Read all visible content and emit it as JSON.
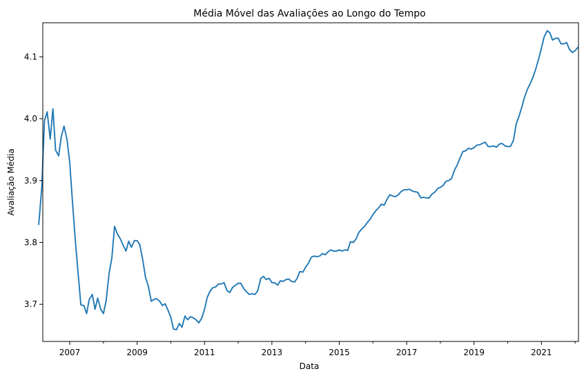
{
  "chart_data": {
    "type": "line",
    "title": "Média Móvel das Avaliações ao Longo do Tempo",
    "xlabel": "Data",
    "ylabel": "Avaliação Média",
    "xlim": [
      2006.2,
      2022.1
    ],
    "ylim": [
      3.64,
      4.155
    ],
    "x_ticks": [
      2007,
      2009,
      2011,
      2013,
      2015,
      2017,
      2019,
      2021
    ],
    "x_tick_labels": [
      "2007",
      "2009",
      "2011",
      "2013",
      "2015",
      "2017",
      "2019",
      "2021"
    ],
    "x_minor_ticks": [
      2008,
      2010,
      2012,
      2014,
      2016,
      2018,
      2020,
      2022
    ],
    "y_ticks": [
      3.7,
      3.8,
      3.9,
      4.0,
      4.1
    ],
    "y_tick_labels": [
      "3.7",
      "3.8",
      "3.9",
      "4.0",
      "4.1"
    ],
    "grid": false,
    "line_color": "#1f77b4",
    "series": [
      {
        "x": [
          2006.08,
          2006.17,
          2006.25,
          2006.33,
          2006.42,
          2006.5,
          2006.58,
          2006.67,
          2006.75,
          2006.83,
          2006.92,
          2007.0,
          2007.08,
          2007.17,
          2007.25,
          2007.33,
          2007.42,
          2007.5,
          2007.58,
          2007.67,
          2007.75,
          2007.83,
          2007.92,
          2008.0,
          2008.08,
          2008.17,
          2008.25,
          2008.33,
          2008.42,
          2008.5,
          2008.58,
          2008.67,
          2008.75,
          2008.83,
          2008.92,
          2009.0,
          2009.08,
          2009.17,
          2009.25,
          2009.33,
          2009.42,
          2009.5,
          2009.58,
          2009.67,
          2009.75,
          2009.83,
          2009.92,
          2010.0,
          2010.08,
          2010.17,
          2010.25,
          2010.33,
          2010.42,
          2010.5,
          2010.58,
          2010.67,
          2010.75,
          2010.83,
          2010.92,
          2011.0,
          2011.08,
          2011.17,
          2011.25,
          2011.33,
          2011.42,
          2011.5,
          2011.58,
          2011.67,
          2011.75,
          2011.83,
          2011.92,
          2012.0,
          2012.08,
          2012.17,
          2012.25,
          2012.33,
          2012.42,
          2012.5,
          2012.58,
          2012.67,
          2012.75,
          2012.83,
          2012.92,
          2013.0,
          2013.08,
          2013.17,
          2013.25,
          2013.33,
          2013.42,
          2013.5,
          2013.58,
          2013.67,
          2013.75,
          2013.83,
          2013.92,
          2014.0,
          2014.08,
          2014.17,
          2014.25,
          2014.33,
          2014.42,
          2014.5,
          2014.58,
          2014.67,
          2014.75,
          2014.83,
          2014.92,
          2015.0,
          2015.08,
          2015.17,
          2015.25,
          2015.33,
          2015.42,
          2015.5,
          2015.58,
          2015.67,
          2015.75,
          2015.83,
          2015.92,
          2016.0,
          2016.08,
          2016.17,
          2016.25,
          2016.33,
          2016.42,
          2016.5,
          2016.58,
          2016.67,
          2016.75,
          2016.83,
          2016.92,
          2017.0,
          2017.08,
          2017.17,
          2017.25,
          2017.33,
          2017.42,
          2017.5,
          2017.58,
          2017.67,
          2017.75,
          2017.83,
          2017.92,
          2018.0,
          2018.08,
          2018.17,
          2018.25,
          2018.33,
          2018.42,
          2018.5,
          2018.58,
          2018.67,
          2018.75,
          2018.83,
          2018.92,
          2019.0,
          2019.08,
          2019.17,
          2019.25,
          2019.33,
          2019.42,
          2019.5,
          2019.58,
          2019.67,
          2019.75,
          2019.83,
          2019.92,
          2020.0,
          2020.08,
          2020.17,
          2020.25,
          2020.33,
          2020.42,
          2020.5,
          2020.58,
          2020.67,
          2020.75,
          2020.83,
          2020.92,
          2021.0,
          2021.08,
          2021.17,
          2021.25,
          2021.33,
          2021.42,
          2021.5,
          2021.58,
          2021.67,
          2021.75,
          2021.83,
          2021.92,
          2022.0,
          2022.08
        ],
        "values": [
          3.829,
          3.889,
          3.997,
          4.011,
          3.967,
          4.016,
          3.949,
          3.94,
          3.971,
          3.988,
          3.966,
          3.929,
          3.866,
          3.8,
          3.749,
          3.699,
          3.698,
          3.685,
          3.708,
          3.716,
          3.692,
          3.71,
          3.692,
          3.685,
          3.706,
          3.751,
          3.775,
          3.826,
          3.813,
          3.806,
          3.796,
          3.786,
          3.802,
          3.792,
          3.803,
          3.803,
          3.796,
          3.771,
          3.743,
          3.73,
          3.705,
          3.708,
          3.709,
          3.705,
          3.698,
          3.701,
          3.69,
          3.679,
          3.66,
          3.659,
          3.669,
          3.663,
          3.681,
          3.675,
          3.68,
          3.678,
          3.675,
          3.67,
          3.678,
          3.692,
          3.711,
          3.722,
          3.727,
          3.728,
          3.733,
          3.733,
          3.735,
          3.722,
          3.719,
          3.727,
          3.731,
          3.734,
          3.734,
          3.725,
          3.72,
          3.716,
          3.717,
          3.716,
          3.722,
          3.742,
          3.745,
          3.74,
          3.742,
          3.735,
          3.735,
          3.731,
          3.738,
          3.737,
          3.74,
          3.741,
          3.737,
          3.736,
          3.742,
          3.753,
          3.752,
          3.76,
          3.766,
          3.776,
          3.778,
          3.777,
          3.778,
          3.782,
          3.78,
          3.785,
          3.788,
          3.786,
          3.786,
          3.788,
          3.786,
          3.788,
          3.787,
          3.801,
          3.8,
          3.806,
          3.816,
          3.822,
          3.826,
          3.832,
          3.838,
          3.845,
          3.851,
          3.856,
          3.862,
          3.86,
          3.87,
          3.877,
          3.875,
          3.874,
          3.877,
          3.882,
          3.885,
          3.885,
          3.886,
          3.883,
          3.882,
          3.881,
          3.872,
          3.873,
          3.872,
          3.872,
          3.878,
          3.881,
          3.887,
          3.889,
          3.892,
          3.899,
          3.9,
          3.903,
          3.917,
          3.925,
          3.936,
          3.947,
          3.948,
          3.952,
          3.951,
          3.953,
          3.957,
          3.958,
          3.96,
          3.962,
          3.955,
          3.955,
          3.956,
          3.954,
          3.959,
          3.96,
          3.956,
          3.955,
          3.955,
          3.965,
          3.991,
          4.003,
          4.019,
          4.035,
          4.047,
          4.057,
          4.067,
          4.08,
          4.097,
          4.114,
          4.132,
          4.142,
          4.139,
          4.127,
          4.13,
          4.13,
          4.121,
          4.121,
          4.123,
          4.112,
          4.107,
          4.11,
          4.115
        ]
      }
    ]
  }
}
